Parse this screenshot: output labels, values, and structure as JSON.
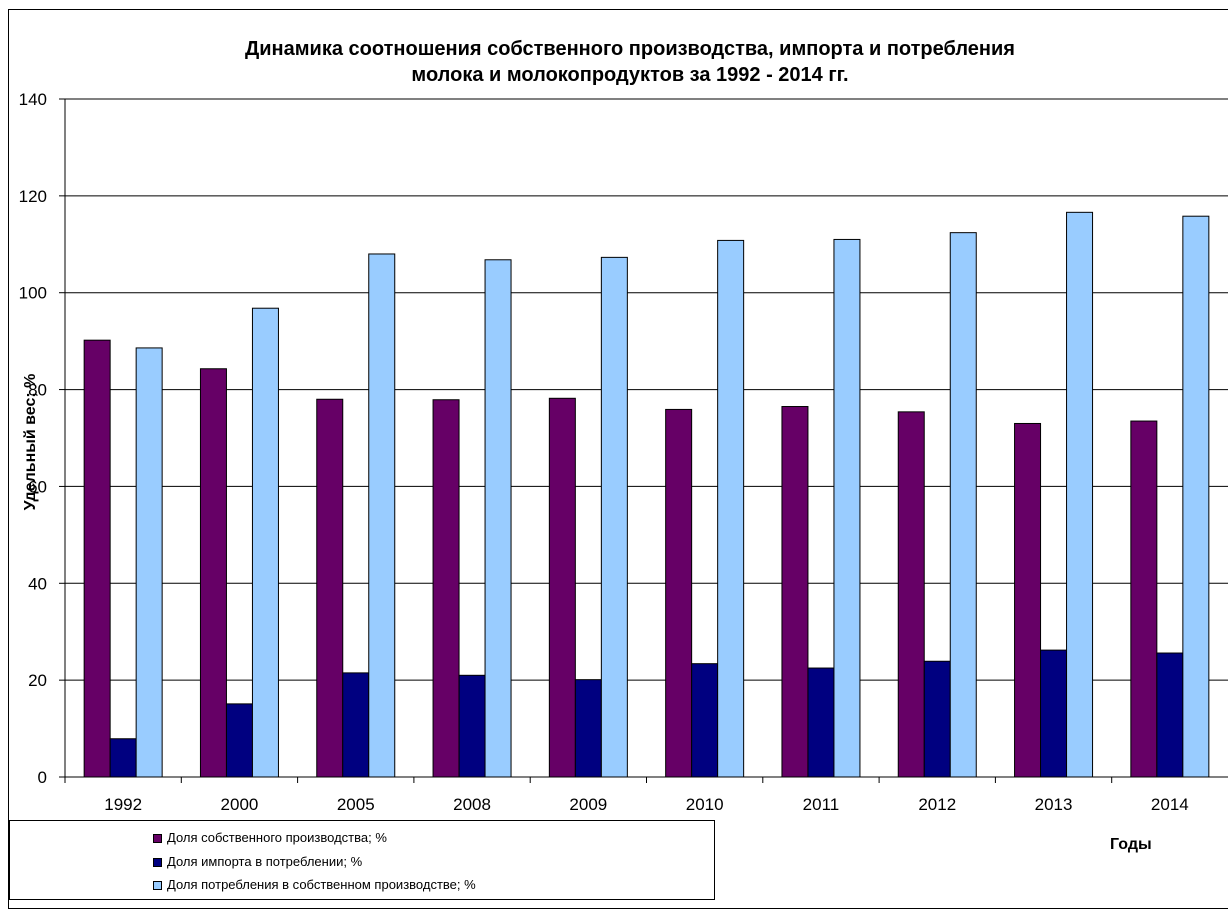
{
  "chart_data": {
    "type": "bar",
    "title": "Динамика соотношения собственного производства, импорта и потребления",
    "title_line2": "молока и молокопродуктов за 1992 - 2014 гг.",
    "xlabel": "Годы",
    "ylabel": "Удельный вес; %",
    "ylim": [
      0,
      140
    ],
    "yticks": [
      "0",
      "20",
      "40",
      "60",
      "80",
      "100",
      "120",
      "140"
    ],
    "categories": [
      "1992",
      "2000",
      "2005",
      "2008",
      "2009",
      "2010",
      "2011",
      "2012",
      "2013",
      "2014"
    ],
    "series": [
      {
        "name": "Доля собственного производства; %",
        "color": "#660066",
        "values": [
          90.2,
          84.3,
          78.0,
          77.9,
          78.2,
          75.9,
          76.5,
          75.4,
          73.0,
          73.5
        ]
      },
      {
        "name": "Доля импорта в потреблении; %",
        "color": "#000080",
        "values": [
          7.9,
          15.1,
          21.5,
          21.0,
          20.1,
          23.4,
          22.5,
          23.9,
          26.2,
          25.6
        ]
      },
      {
        "name": "Доля потребления в собственном производстве; %",
        "color": "#99CCFF",
        "values": [
          88.6,
          96.8,
          108.0,
          106.8,
          107.3,
          110.8,
          111.0,
          112.4,
          116.6,
          115.8
        ]
      }
    ],
    "grid": true,
    "legend_position": "bottom-left"
  }
}
